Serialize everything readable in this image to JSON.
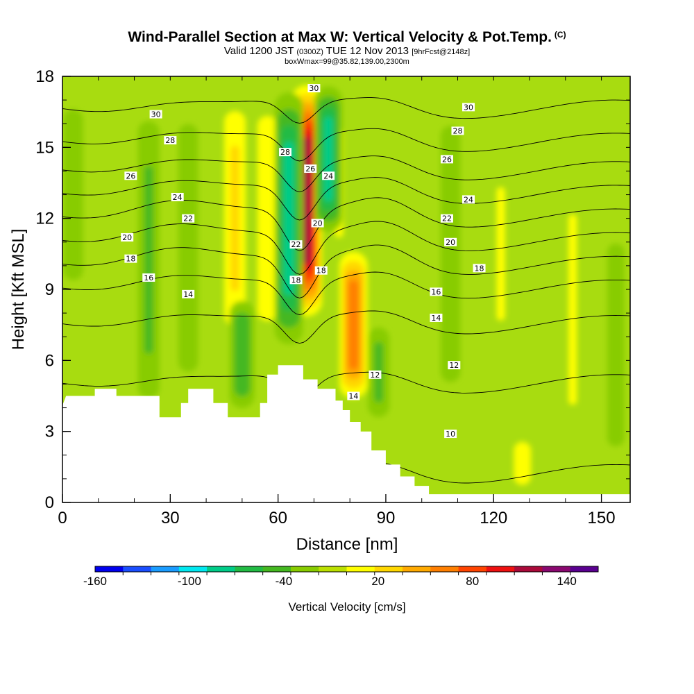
{
  "header": {
    "title": "Wind-Parallel Section at Max W: Vertical Velocity & Pot.Temp.",
    "copyright": "(C)",
    "valid_prefix": "Valid 1200 JST",
    "valid_utc": "(0300Z)",
    "valid_date": "TUE 12 Nov 2013",
    "forecast": "[9hrFcst@2148z]",
    "box_info": "boxWmax=99@35.82,139.00,2300m"
  },
  "chart_data": {
    "type": "heatmap",
    "title": "Wind-Parallel Section at Max W: Vertical Velocity & Pot.Temp.",
    "xlabel": "Distance [nm]",
    "ylabel": "Height [Kft MSL]",
    "xlim": [
      0,
      158
    ],
    "ylim": [
      0,
      18
    ],
    "x_ticks": [
      0,
      30,
      60,
      90,
      120,
      150
    ],
    "y_ticks": [
      0,
      3,
      6,
      9,
      12,
      15,
      18
    ],
    "grid": false,
    "colorbar": {
      "title": "Vertical Velocity [cm/s]",
      "range": [
        -160,
        160
      ],
      "step": 20,
      "labels": [
        -160,
        -100,
        -40,
        20,
        80,
        140
      ],
      "colors": [
        "#0000ee",
        "#1a4eff",
        "#1a9cff",
        "#00e8f0",
        "#00cc88",
        "#22bb44",
        "#44b820",
        "#88cc00",
        "#bbe000",
        "#ffff00",
        "#ffd700",
        "#ffaa00",
        "#ff7f00",
        "#ff4400",
        "#ee1111",
        "#aa0a3a",
        "#8a0870",
        "#5a0090"
      ]
    },
    "velocity_features": [
      {
        "x": 68,
        "bottom": 7.5,
        "top": 18,
        "peak": 150
      },
      {
        "x": 81,
        "bottom": 4.0,
        "top": 11,
        "peak": 95
      },
      {
        "x": 57,
        "bottom": 6.0,
        "top": 18,
        "peak": 45
      },
      {
        "x": 48,
        "bottom": 6.0,
        "top": 18,
        "peak": 50
      },
      {
        "x": 77,
        "bottom": 9.0,
        "top": 18,
        "peak": 30
      },
      {
        "x": 63,
        "bottom": 6.0,
        "top": 18,
        "peak": -75
      },
      {
        "x": 74,
        "bottom": 11.0,
        "top": 18,
        "peak": -70
      },
      {
        "x": 35,
        "bottom": 3.5,
        "top": 18,
        "peak": -25
      },
      {
        "x": 24,
        "bottom": 2.5,
        "top": 18,
        "peak": -30
      },
      {
        "x": 3,
        "bottom": 8.0,
        "top": 18,
        "peak": -25
      },
      {
        "x": 50,
        "bottom": 3.5,
        "top": 9,
        "peak": -45
      },
      {
        "x": 88,
        "bottom": 3.0,
        "top": 8,
        "peak": -30
      },
      {
        "x": 108,
        "bottom": 3.0,
        "top": 18,
        "peak": -25
      },
      {
        "x": 128,
        "bottom": 0.3,
        "top": 3,
        "peak": 40
      },
      {
        "x": 122,
        "bottom": 5.0,
        "top": 16,
        "peak": 20
      },
      {
        "x": 142,
        "bottom": 0.3,
        "top": 16,
        "peak": 20
      },
      {
        "x": 154,
        "bottom": 0.3,
        "top": 13,
        "peak": -20
      }
    ],
    "terrain": [
      [
        0,
        4.1
      ],
      [
        1,
        4.5
      ],
      [
        9,
        4.5
      ],
      [
        9,
        4.8
      ],
      [
        15,
        4.8
      ],
      [
        15,
        4.5
      ],
      [
        27,
        4.5
      ],
      [
        27,
        3.6
      ],
      [
        33,
        3.6
      ],
      [
        33,
        4.2
      ],
      [
        35,
        4.2
      ],
      [
        35,
        4.8
      ],
      [
        42,
        4.8
      ],
      [
        42,
        4.2
      ],
      [
        46,
        4.2
      ],
      [
        46,
        3.6
      ],
      [
        52,
        3.6
      ],
      [
        52,
        3.6
      ],
      [
        55,
        3.6
      ],
      [
        55,
        4.2
      ],
      [
        57,
        4.2
      ],
      [
        57,
        5.4
      ],
      [
        60,
        5.4
      ],
      [
        60,
        5.8
      ],
      [
        67,
        5.8
      ],
      [
        67,
        5.2
      ],
      [
        71,
        5.2
      ],
      [
        71,
        4.8
      ],
      [
        76,
        4.8
      ],
      [
        76,
        4.3
      ],
      [
        78,
        4.3
      ],
      [
        78,
        3.9
      ],
      [
        80,
        3.9
      ],
      [
        80,
        3.4
      ],
      [
        83,
        3.4
      ],
      [
        83,
        3.0
      ],
      [
        86,
        3.0
      ],
      [
        86,
        2.2
      ],
      [
        90,
        2.2
      ],
      [
        90,
        1.6
      ],
      [
        94,
        1.6
      ],
      [
        94,
        1.1
      ],
      [
        98,
        1.1
      ],
      [
        98,
        0.7
      ],
      [
        102,
        0.7
      ],
      [
        102,
        0.35
      ],
      [
        158,
        0.35
      ]
    ],
    "theta_contours": [
      {
        "label": "10",
        "base": 1.2,
        "bump": 1.0
      },
      {
        "label": "12",
        "base": 5.0,
        "bump": 1.0
      },
      {
        "label": "14",
        "base": 7.5,
        "bump": 1.2
      },
      {
        "label": "16",
        "base": 9.0,
        "bump": 1.5
      },
      {
        "label": "18",
        "base": 10.0,
        "bump": 1.8
      },
      {
        "label": "20",
        "base": 11.0,
        "bump": 1.8
      },
      {
        "label": "22",
        "base": 12.0,
        "bump": 1.8
      },
      {
        "label": "24",
        "base": 13.0,
        "bump": 1.5
      },
      {
        "label": "26",
        "base": 14.0,
        "bump": 1.3
      },
      {
        "label": "28",
        "base": 15.2,
        "bump": 1.2
      },
      {
        "label": "30",
        "base": 16.6,
        "bump": 1.0
      }
    ],
    "contour_labels": [
      {
        "text": "30",
        "x": 26,
        "y": 16.4
      },
      {
        "text": "28",
        "x": 30,
        "y": 15.3
      },
      {
        "text": "26",
        "x": 19,
        "y": 13.8
      },
      {
        "text": "24",
        "x": 32,
        "y": 12.9
      },
      {
        "text": "22",
        "x": 35,
        "y": 12.0
      },
      {
        "text": "20",
        "x": 18,
        "y": 11.2
      },
      {
        "text": "18",
        "x": 19,
        "y": 10.3
      },
      {
        "text": "16",
        "x": 24,
        "y": 9.5
      },
      {
        "text": "14",
        "x": 35,
        "y": 8.8
      },
      {
        "text": "30",
        "x": 70,
        "y": 17.5
      },
      {
        "text": "28",
        "x": 62,
        "y": 14.8
      },
      {
        "text": "26",
        "x": 69,
        "y": 14.1
      },
      {
        "text": "24",
        "x": 74,
        "y": 13.8
      },
      {
        "text": "20",
        "x": 71,
        "y": 11.8
      },
      {
        "text": "22",
        "x": 65,
        "y": 10.9
      },
      {
        "text": "18",
        "x": 72,
        "y": 9.8
      },
      {
        "text": "18",
        "x": 65,
        "y": 9.4
      },
      {
        "text": "14",
        "x": 81,
        "y": 4.5
      },
      {
        "text": "12",
        "x": 87,
        "y": 5.4
      },
      {
        "text": "30",
        "x": 113,
        "y": 16.7
      },
      {
        "text": "28",
        "x": 110,
        "y": 15.7
      },
      {
        "text": "26",
        "x": 107,
        "y": 14.5
      },
      {
        "text": "24",
        "x": 113,
        "y": 12.8
      },
      {
        "text": "22",
        "x": 107,
        "y": 12.0
      },
      {
        "text": "20",
        "x": 108,
        "y": 11.0
      },
      {
        "text": "18",
        "x": 116,
        "y": 9.9
      },
      {
        "text": "16",
        "x": 104,
        "y": 8.9
      },
      {
        "text": "14",
        "x": 104,
        "y": 7.8
      },
      {
        "text": "12",
        "x": 109,
        "y": 5.8
      },
      {
        "text": "10",
        "x": 108,
        "y": 2.9
      }
    ]
  }
}
